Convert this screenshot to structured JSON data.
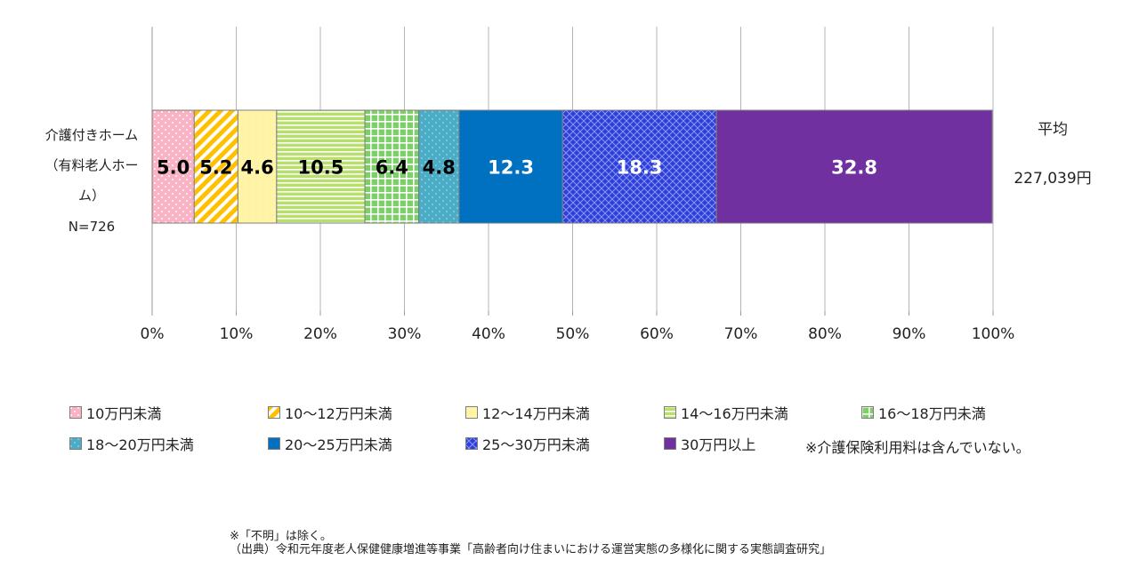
{
  "chart_data": {
    "type": "bar",
    "orientation": "horizontal",
    "stacked": true,
    "percent": true,
    "categories": [
      "介護付きホーム（有料老人ホーム）N=726"
    ],
    "category_label_lines": [
      "介護付きホーム",
      "（有料老人ホー",
      "ム）",
      "N=726"
    ],
    "series": [
      {
        "name": "10万円未満",
        "values": [
          5.0
        ],
        "color": "#f9b3c5"
      },
      {
        "name": "10～12万円未満",
        "values": [
          5.2
        ],
        "color": "#ffc000"
      },
      {
        "name": "12～14万円未満",
        "values": [
          4.6
        ],
        "color": "#fff3a6"
      },
      {
        "name": "14～16万円未満",
        "values": [
          10.5
        ],
        "color": "#b7e06a"
      },
      {
        "name": "16～18万円未満",
        "values": [
          6.4
        ],
        "color": "#7ecf6a"
      },
      {
        "name": "18～20万円未満",
        "values": [
          4.8
        ],
        "color": "#4bacc6"
      },
      {
        "name": "20～25万円未満",
        "values": [
          12.3
        ],
        "color": "#0070c0"
      },
      {
        "name": "25～30万円未満",
        "values": [
          18.3
        ],
        "color": "#2e3fd6"
      },
      {
        "name": "30万円以上",
        "values": [
          32.8
        ],
        "color": "#7030a0"
      }
    ],
    "data_labels": [
      "5.0",
      "5.2",
      "4.6",
      "10.5",
      "6.4",
      "4.8",
      "12.3",
      "18.3",
      "32.8"
    ],
    "xlim": [
      0,
      100
    ],
    "x_ticks": [
      "0%",
      "10%",
      "20%",
      "30%",
      "40%",
      "50%",
      "60%",
      "70%",
      "80%",
      "90%",
      "100%"
    ],
    "grid": true,
    "legend_position": "bottom",
    "average_label": "平均",
    "average_value": "227,039円"
  },
  "note": "※介護保険利用料は含んでいない。",
  "footer": {
    "line1": "※「不明」は除く。",
    "line2": "（出典）令和元年度老人保健健康増進等事業「高齢者向け住まいにおける運営実態の多様化に関する実態調査研究」"
  }
}
